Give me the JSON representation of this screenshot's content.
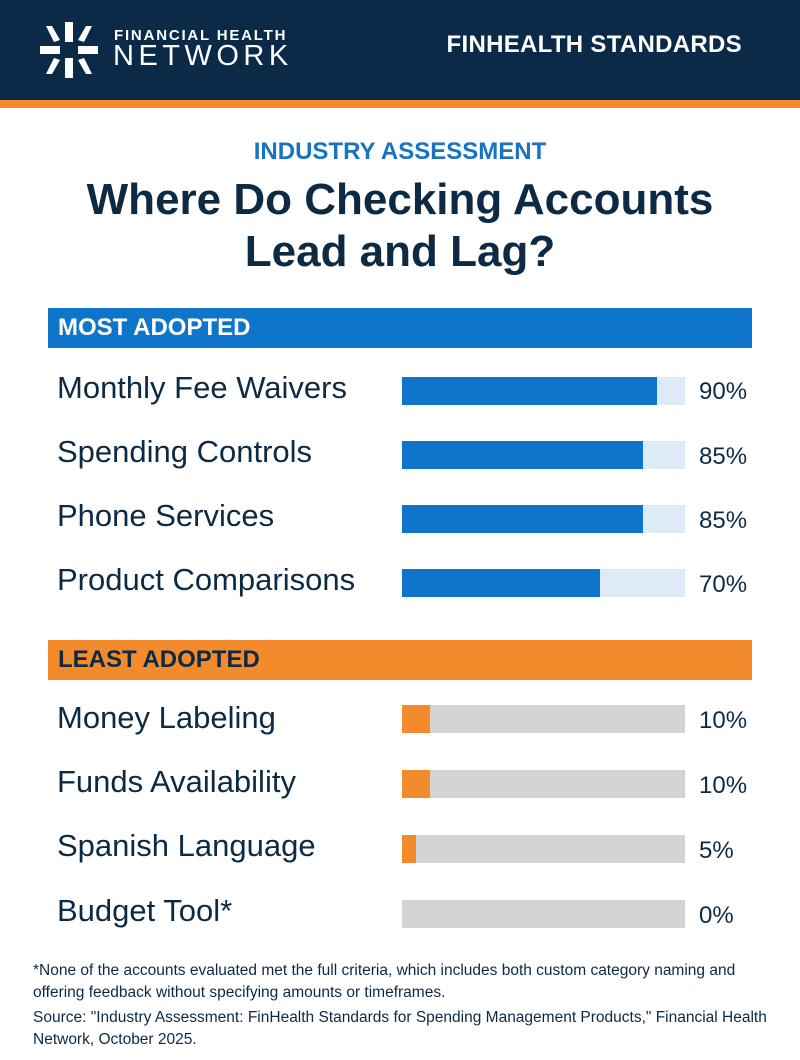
{
  "header": {
    "logo_top": "FINANCIAL HEALTH",
    "logo_bottom": "NETWORK",
    "standards": "FINHEALTH STANDARDS"
  },
  "kicker": "INDUSTRY ASSESSMENT",
  "title_line1": "Where Do Checking Accounts",
  "title_line2": "Lead and Lag?",
  "colors": {
    "navy": "#0b2a48",
    "blue": "#0f75cb",
    "light_blue": "#dcebf7",
    "orange": "#f38b2c",
    "gray": "#d3d3d3"
  },
  "chart_data": {
    "type": "bar",
    "orientation": "horizontal",
    "unit": "%",
    "xlim": [
      0,
      100
    ],
    "groups": [
      {
        "name": "MOST ADOPTED",
        "categories": [
          "Monthly Fee Waivers",
          "Spending Controls",
          "Phone Services",
          "Product Comparisons"
        ],
        "values": [
          90,
          85,
          85,
          70
        ],
        "labels": [
          "90%",
          "85%",
          "85%",
          "70%"
        ]
      },
      {
        "name": "LEAST ADOPTED",
        "categories": [
          "Money Labeling",
          "Funds Availability",
          "Spanish Language",
          "Budget Tool*"
        ],
        "values": [
          10,
          10,
          5,
          0
        ],
        "labels": [
          "10%",
          "10%",
          "5%",
          "0%"
        ]
      }
    ]
  },
  "footnote": "*None of the accounts evaluated met the full criteria, which includes both custom category naming and offering feedback without specifying amounts or timeframes.",
  "source": "Source: \"Industry Assessment: FinHealth Standards for Spending Management Products,\" Financial Health Network, October 2025."
}
